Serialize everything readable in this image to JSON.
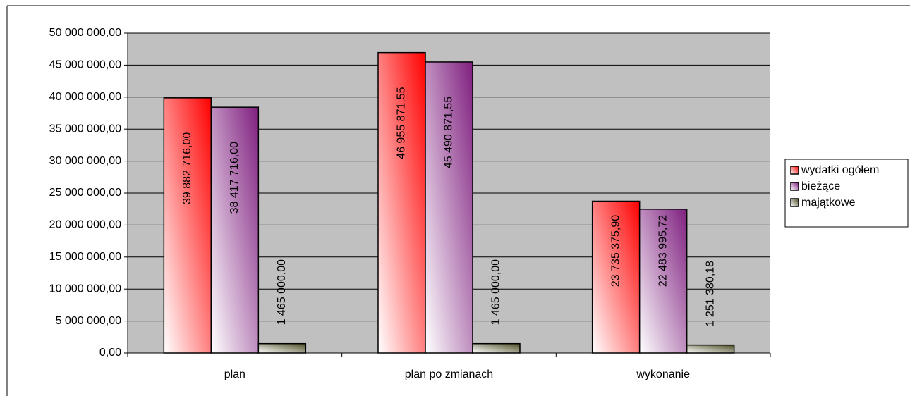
{
  "chart_data": {
    "type": "bar",
    "categories": [
      "plan",
      "plan po zmianach",
      "wykonanie"
    ],
    "series": [
      {
        "name": "wydatki ogółem",
        "color": "#ff0000",
        "values": [
          39882716.0,
          46955871.55,
          23735375.9
        ],
        "value_labels": [
          "39 882 716,00",
          "46 955 871,55",
          "23 735 375,90"
        ]
      },
      {
        "name": "bieżące",
        "color": "#7f1f7f",
        "values": [
          38417716.0,
          45490871.55,
          22483995.72
        ],
        "value_labels": [
          "38 417 716,00",
          "45 490 871,55",
          "22 483 995,72"
        ]
      },
      {
        "name": "majątkowe",
        "color": "#4d4d26",
        "values": [
          1465000.0,
          1465000.0,
          1251380.18
        ],
        "value_labels": [
          "1 465 000,00",
          "1 465 000,00",
          "1 251 380,18"
        ]
      }
    ],
    "ylim": [
      0,
      50000000
    ],
    "yticks": [
      {
        "value": 0,
        "label": "0,00"
      },
      {
        "value": 5000000,
        "label": "5 000 000,00"
      },
      {
        "value": 10000000,
        "label": "10 000 000,00"
      },
      {
        "value": 15000000,
        "label": "15 000 000,00"
      },
      {
        "value": 20000000,
        "label": "20 000 000,00"
      },
      {
        "value": 25000000,
        "label": "25 000 000,00"
      },
      {
        "value": 30000000,
        "label": "30 000 000,00"
      },
      {
        "value": 35000000,
        "label": "35 000 000,00"
      },
      {
        "value": 40000000,
        "label": "40 000 000,00"
      },
      {
        "value": 45000000,
        "label": "45 000 000,00"
      },
      {
        "value": 50000000,
        "label": "50 000 000,00"
      }
    ],
    "grid": true,
    "legend": "right",
    "plot_background": "#c0c0c0"
  }
}
